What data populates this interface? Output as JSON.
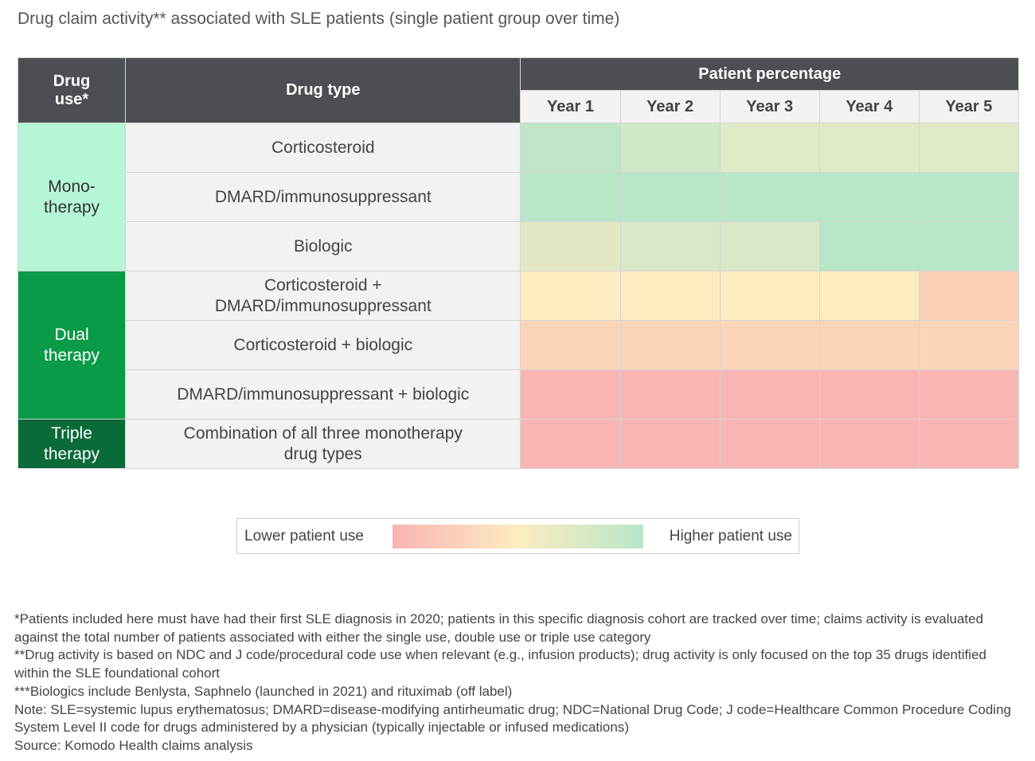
{
  "title": "Drug claim activity** associated with SLE patients (single patient group over time)",
  "table": {
    "headers": {
      "drug_use": [
        "Drug",
        "use*"
      ],
      "drug_type": "Drug type",
      "group": "Patient percentage",
      "years": [
        "Year 1",
        "Year 2",
        "Year 3",
        "Year 4",
        "Year 5"
      ]
    },
    "groups": [
      {
        "label": [
          "Mono-",
          "therapy"
        ],
        "color": "#b5f5d8",
        "text_color": "#333333",
        "rows": [
          {
            "type": [
              "Corticosteroid"
            ],
            "colors": [
              "#bfe6c9",
              "#cfe8c8",
              "#dfeac6",
              "#dfeac6",
              "#dfeac6"
            ]
          },
          {
            "type": [
              "DMARD/immunosuppressant"
            ],
            "colors": [
              "#b8e6c8",
              "#b8e6c8",
              "#b8e6c8",
              "#b8e6c8",
              "#b8e6c8"
            ]
          },
          {
            "type": [
              "Biologic"
            ],
            "colors": [
              "#e2e7c4",
              "#d9e8c6",
              "#d9e8c6",
              "#b8e6c8",
              "#b8e6c8"
            ]
          }
        ]
      },
      {
        "label": [
          "Dual",
          "therapy"
        ],
        "color": "#0a9a48",
        "text_color": "#ffffff",
        "rows": [
          {
            "type": [
              "Corticosteroid +",
              "DMARD/immunosuppressant"
            ],
            "colors": [
              "#fcecc0",
              "#fcecc0",
              "#fcecc0",
              "#fcecc0",
              "#fcd2b6"
            ]
          },
          {
            "type": [
              "Corticosteroid + biologic"
            ],
            "colors": [
              "#fcd5b8",
              "#fcd5b8",
              "#fcd5b8",
              "#fcd5b8",
              "#fcd5b8"
            ]
          },
          {
            "type": [
              "DMARD/immunosuppressant + biologic"
            ],
            "colors": [
              "#f9b4b4",
              "#f9b4b4",
              "#f9b4b4",
              "#f9b4b4",
              "#f9b4b4"
            ]
          }
        ]
      },
      {
        "label": [
          "Triple",
          "therapy"
        ],
        "color": "#0a6a3a",
        "text_color": "#ffffff",
        "rows": [
          {
            "type": [
              "Combination of all three monotherapy",
              "drug types"
            ],
            "colors": [
              "#f9b4b4",
              "#f9b4b4",
              "#f9b4b4",
              "#f9b4b4",
              "#f9b4b4"
            ]
          }
        ]
      }
    ]
  },
  "legend": {
    "low": "Lower patient use",
    "high": "Higher patient use",
    "colors": [
      "#f9b4b4",
      "#fcecc0",
      "#b8e6c8"
    ]
  },
  "footnotes": [
    "*Patients included here must have had their first SLE diagnosis in 2020; patients in this specific diagnosis cohort are tracked over time; claims activity is evaluated against the total number of patients associated with either the single use, double use or triple use category",
    "**Drug activity is based on NDC and J code/procedural code use when relevant (e.g., infusion products); drug activity is only focused on the top 35 drugs identified within the SLE foundational cohort",
    "***Biologics include Benlysta, Saphnelo (launched in 2021) and rituximab (off label)",
    "Note: SLE=systemic lupus erythematosus; DMARD=disease-modifying antirheumatic drug; NDC=National Drug Code; J code=Healthcare Common Procedure Coding System Level II code for drugs administered by a physician (typically injectable or infused medications)",
    "Source: Komodo Health claims analysis"
  ]
}
